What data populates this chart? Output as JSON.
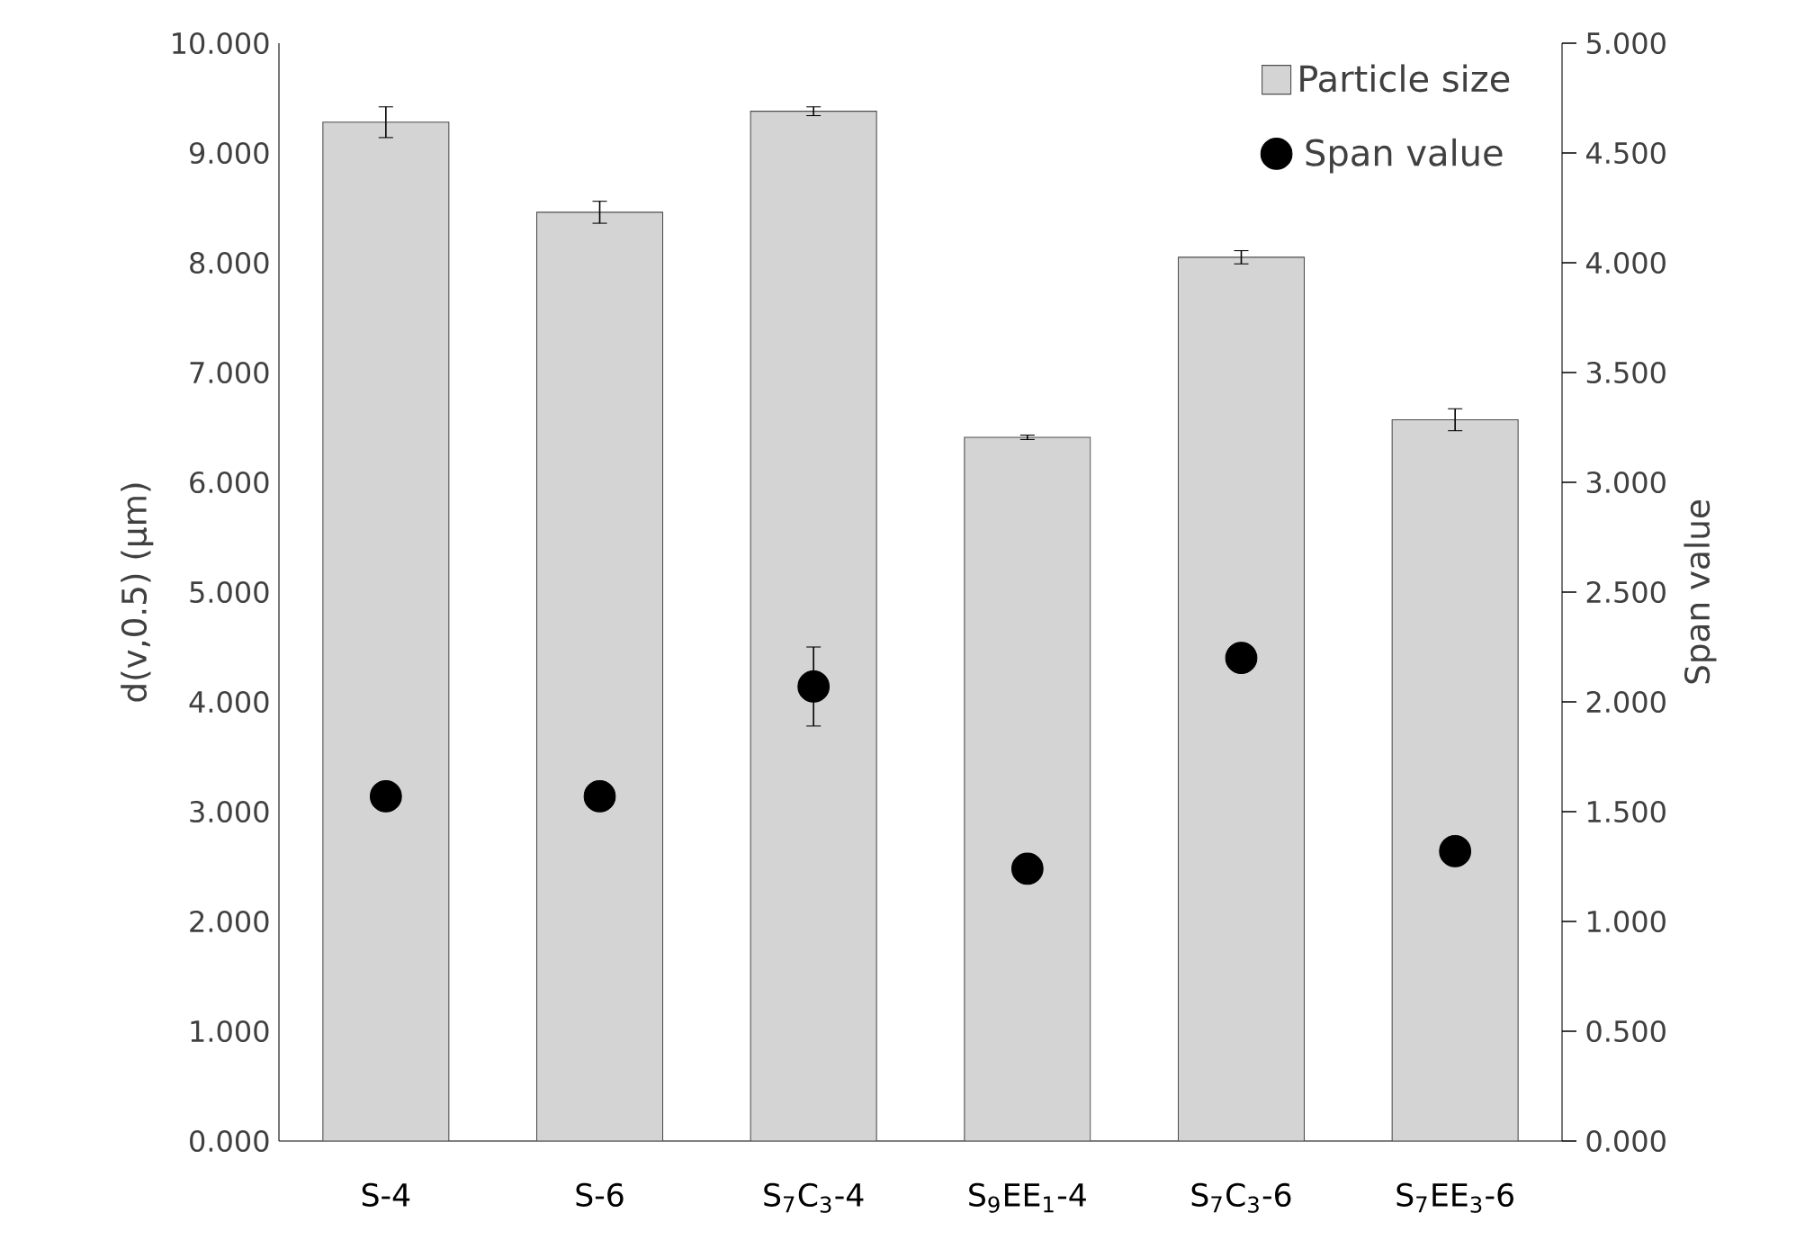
{
  "chart_data": {
    "type": "bar",
    "categories": [
      "S-4",
      "S-6",
      "S$_{7}$C$_{3}$-4",
      "S$_{9}$EE$_{1}$-4",
      "S$_{7}$C$_{3}$-6",
      "S$_{7}$EE$_{3}$-6"
    ],
    "ylabel": "d(v,0.5)  (μm)",
    "y2label": "Span value",
    "series": [
      {
        "name": "Particle size",
        "color": "#d4d4d4",
        "values": [
          9.28,
          8.46,
          9.38,
          6.41,
          8.05,
          6.57
        ],
        "errors": [
          0.14,
          0.1,
          0.04,
          0.02,
          0.06,
          0.1
        ]
      },
      {
        "name": "Span value",
        "type": "scatter",
        "axis": "y2",
        "color": "#000000",
        "values": [
          1.57,
          1.57,
          2.07,
          1.24,
          2.2,
          1.32
        ],
        "errors": [
          0.05,
          null,
          0.18,
          null,
          0.06,
          null
        ]
      }
    ],
    "ylim": [
      0,
      10
    ],
    "y2lim": [
      0,
      5
    ],
    "yticks": [
      {
        "value": 0,
        "label": "0.000"
      },
      {
        "value": 1,
        "label": "1.000"
      },
      {
        "value": 2,
        "label": "2.000"
      },
      {
        "value": 3,
        "label": "3.000"
      },
      {
        "value": 4,
        "label": "4.000"
      },
      {
        "value": 5,
        "label": "5.000"
      },
      {
        "value": 6,
        "label": "6.000"
      },
      {
        "value": 7,
        "label": "7.000"
      },
      {
        "value": 8,
        "label": "8.000"
      },
      {
        "value": 9,
        "label": "9.000"
      },
      {
        "value": 10,
        "label": "10.000"
      }
    ],
    "y2ticks": [
      {
        "value": 0,
        "label": "0.000"
      },
      {
        "value": 0.5,
        "label": "0.500"
      },
      {
        "value": 1,
        "label": "1.000"
      },
      {
        "value": 1.5,
        "label": "1.500"
      },
      {
        "value": 2,
        "label": "2.000"
      },
      {
        "value": 2.5,
        "label": "2.500"
      },
      {
        "value": 3,
        "label": "3.000"
      },
      {
        "value": 3.5,
        "label": "3.500"
      },
      {
        "value": 4,
        "label": "4.000"
      },
      {
        "value": 4.5,
        "label": "4.500"
      },
      {
        "value": 5,
        "label": "5.000"
      }
    ],
    "legend": "top right",
    "marker": "circle",
    "grid": false
  }
}
